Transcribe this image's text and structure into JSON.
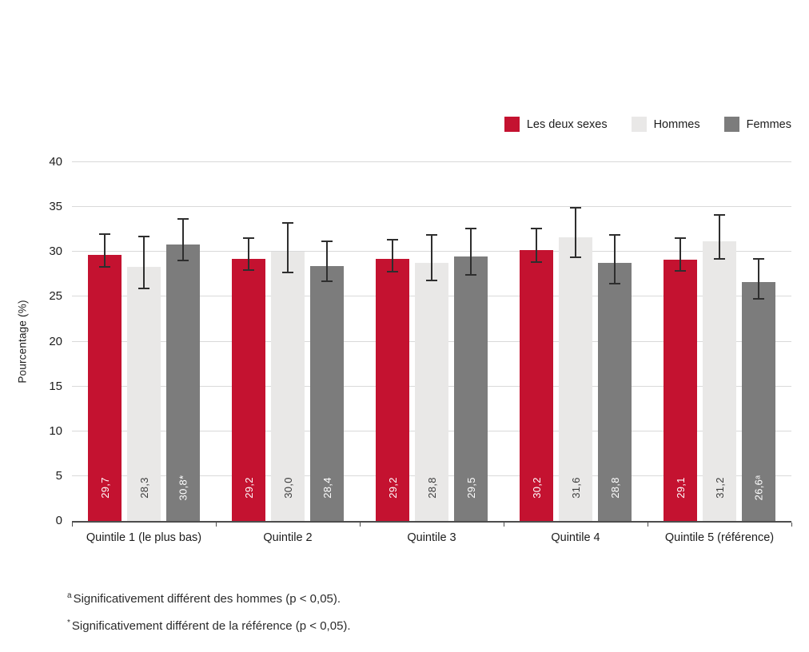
{
  "legend": {
    "items": [
      {
        "label": "Les deux sexes",
        "color": "#c41230"
      },
      {
        "label": "Hommes",
        "color": "#e9e8e7"
      },
      {
        "label": "Femmes",
        "color": "#7c7c7c"
      }
    ]
  },
  "chart_data": {
    "type": "bar",
    "title": "",
    "xlabel": "",
    "ylabel": "Pourcentage (%)",
    "ylim": [
      0,
      40
    ],
    "yticks": [
      0,
      5,
      10,
      15,
      20,
      25,
      30,
      35,
      40
    ],
    "grid": true,
    "legend_position": "top-right",
    "categories": [
      "Quintile 1 (le plus bas)",
      "Quintile 2",
      "Quintile 3",
      "Quintile 4",
      "Quintile 5 (référence)"
    ],
    "series": [
      {
        "name": "Les deux sexes",
        "color": "#c41230",
        "label_color": "#ffffff",
        "values": [
          29.7,
          29.2,
          29.2,
          30.2,
          29.1
        ],
        "labels": [
          "29,7",
          "29,2",
          "29,2",
          "30,2",
          "29,1"
        ],
        "error_low": [
          28.3,
          28.0,
          27.8,
          28.9,
          27.9
        ],
        "error_high": [
          32.0,
          31.5,
          31.4,
          32.6,
          31.5
        ]
      },
      {
        "name": "Hommes",
        "color": "#e9e8e7",
        "label_color": "#3c3c3c",
        "values": [
          28.3,
          30.0,
          28.8,
          31.6,
          31.2
        ],
        "labels": [
          "28,3",
          "30,0",
          "28,8",
          "31,6",
          "31,2"
        ],
        "error_low": [
          25.9,
          27.7,
          26.8,
          29.4,
          29.2
        ],
        "error_high": [
          31.7,
          33.2,
          31.9,
          34.9,
          34.1
        ]
      },
      {
        "name": "Femmes",
        "color": "#7c7c7c",
        "label_color": "#ffffff",
        "values": [
          30.8,
          28.4,
          29.5,
          28.8,
          26.6
        ],
        "labels": [
          "30,8*",
          "28,4",
          "29,5",
          "28,8",
          "26,6ᵃ"
        ],
        "error_low": [
          29.0,
          26.7,
          27.4,
          26.5,
          24.8
        ],
        "error_high": [
          33.7,
          31.2,
          32.6,
          31.9,
          29.2
        ]
      }
    ]
  },
  "footnotes": [
    {
      "marker": "a",
      "text": "Significativement différent des hommes (p < 0,05)."
    },
    {
      "marker": "*",
      "text": "Significativement différent de la référence (p < 0,05)."
    }
  ]
}
